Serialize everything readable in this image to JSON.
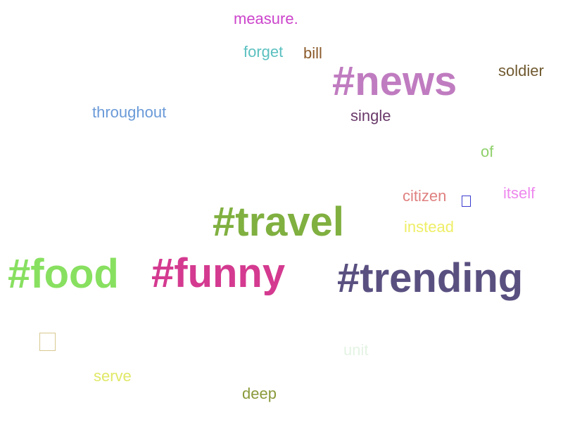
{
  "words": [
    {
      "text": "measure.",
      "color": "#cc44cc"
    },
    {
      "text": "forget",
      "color": "#5cc0c0"
    },
    {
      "text": "bill",
      "color": "#8b5a2b"
    },
    {
      "text": "#news",
      "color": "#c07cc0"
    },
    {
      "text": "soldier",
      "color": "#705a30"
    },
    {
      "text": "throughout",
      "color": "#6a9ad8"
    },
    {
      "text": "single",
      "color": "#6a3a6a"
    },
    {
      "text": "of",
      "color": "#8ed06a"
    },
    {
      "text": "citizen",
      "color": "#e08080"
    },
    {
      "text": "itself",
      "color": "#ee88ee"
    },
    {
      "text": "#travel",
      "color": "#80b040"
    },
    {
      "text": "instead",
      "color": "#eeee66"
    },
    {
      "text": "#food",
      "color": "#88e060"
    },
    {
      "text": "#funny",
      "color": "#d43a90"
    },
    {
      "text": "#trending",
      "color": "#5a5080"
    },
    {
      "text": "unit",
      "color": "#e4f4e4"
    },
    {
      "text": "serve",
      "color": "#e0e866"
    },
    {
      "text": "deep",
      "color": "#8a9a3a"
    }
  ],
  "glyph_boxes": [
    {
      "color": "#3a3ad0"
    },
    {
      "color": "#d8c890"
    }
  ]
}
